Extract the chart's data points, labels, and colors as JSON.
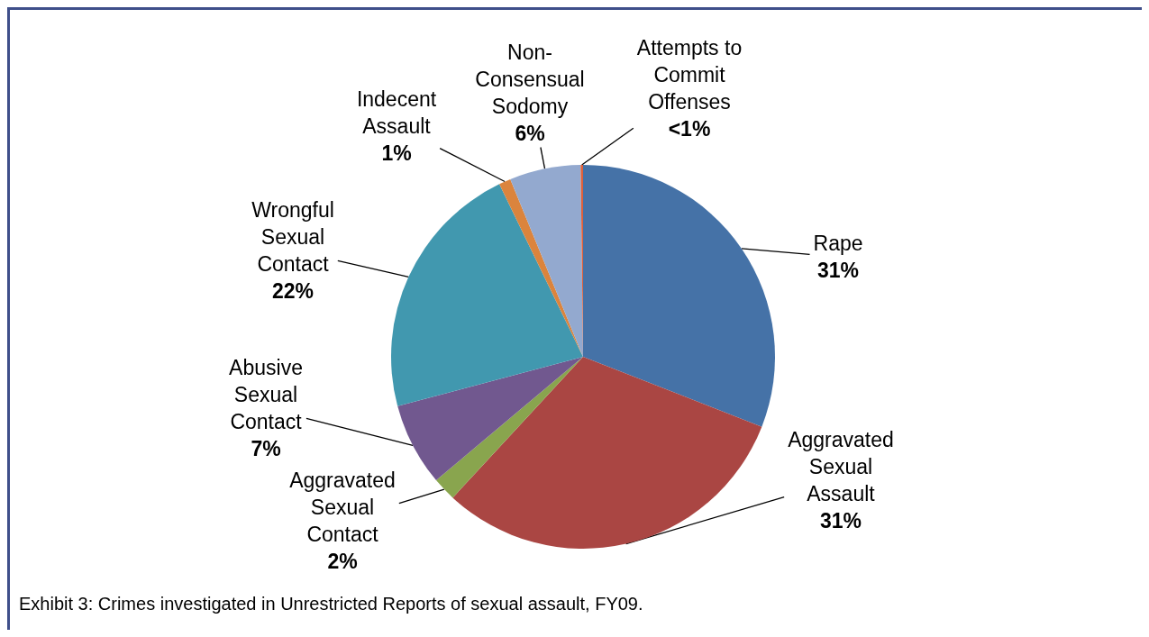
{
  "chart_data": {
    "type": "pie",
    "categories": [
      "Rape",
      "Aggravated\nSexual\nAssault",
      "Aggravated\nSexual\nContact",
      "Abusive\nSexual\nContact",
      "Wrongful\nSexual\nContact",
      "Indecent\nAssault",
      "Non-\nConsensual\nSodomy",
      "Attempts to\nCommit\nOffenses"
    ],
    "values": [
      31,
      31,
      2,
      7,
      22,
      1,
      6,
      0.2
    ],
    "value_labels": [
      "31%",
      "31%",
      "2%",
      "7%",
      "22%",
      "1%",
      "6%",
      "<1%"
    ],
    "colors": [
      "#4572a7",
      "#aa4643",
      "#89a54e",
      "#71588f",
      "#4198af",
      "#db843d",
      "#93a9cf",
      "#e0603a"
    ],
    "annotations": [
      "Exhibit 3: Crimes investigated in Unrestricted Reports of sexual assault, FY09."
    ],
    "legend": false
  }
}
